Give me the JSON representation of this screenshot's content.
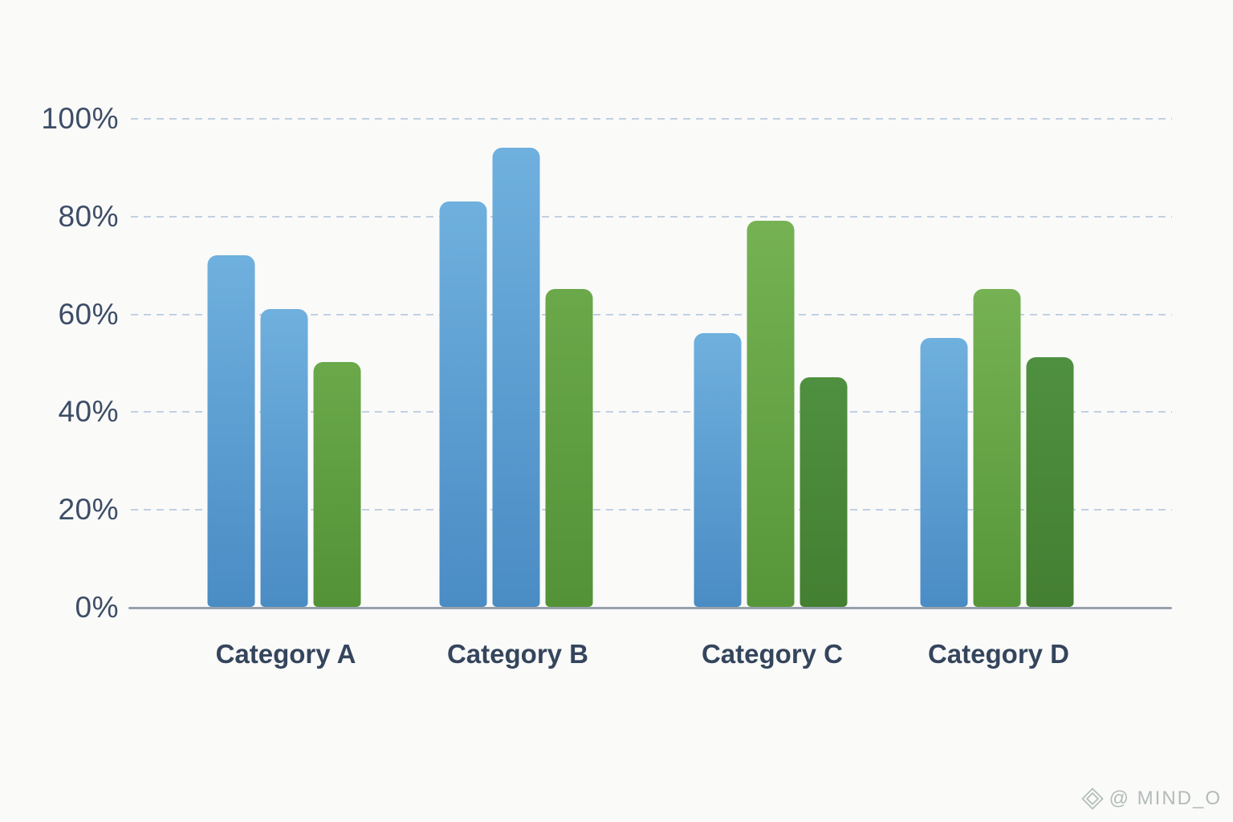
{
  "page": {
    "background_color": "#fafaf9"
  },
  "chart_data": {
    "type": "bar",
    "title": "",
    "xlabel": "",
    "ylabel": "",
    "categories": [
      "Category A",
      "Category B",
      "Category C",
      "Category D"
    ],
    "groups": [
      {
        "label": "Category A",
        "bars": [
          {
            "value": 72,
            "color": "blue"
          },
          {
            "value": 61,
            "color": "blue"
          },
          {
            "value": 50,
            "color": "green"
          }
        ]
      },
      {
        "label": "Category B",
        "bars": [
          {
            "value": 83,
            "color": "blue"
          },
          {
            "value": 94,
            "color": "blue"
          },
          {
            "value": 65,
            "color": "green"
          }
        ]
      },
      {
        "label": "Category C",
        "bars": [
          {
            "value": 56,
            "color": "blue"
          },
          {
            "value": 79,
            "color": "light-green"
          },
          {
            "value": 47,
            "color": "dark-green"
          }
        ]
      },
      {
        "label": "Category D",
        "bars": [
          {
            "value": 55,
            "color": "blue"
          },
          {
            "value": 65,
            "color": "light-green"
          },
          {
            "value": 51,
            "color": "dark-green"
          }
        ]
      }
    ],
    "y_ticks": [
      {
        "label": "100%",
        "value": 100
      },
      {
        "label": "80%",
        "value": 80
      },
      {
        "label": "60%",
        "value": 60
      },
      {
        "label": "40%",
        "value": 40
      },
      {
        "label": "20%",
        "value": 20
      },
      {
        "label": "0%",
        "value": 0
      }
    ],
    "ylim": [
      0,
      100
    ],
    "grid": "horizontal-dashed",
    "legend": "none",
    "palette": {
      "blue": {
        "top": "#6fb0de",
        "bottom": "#4a8cc4"
      },
      "green": {
        "top": "#6aa84a",
        "bottom": "#549238"
      },
      "light-green": {
        "top": "#76b254",
        "bottom": "#569639"
      },
      "dark-green": {
        "top": "#4f9040",
        "bottom": "#447f32"
      }
    },
    "colors": {
      "grid": "#b7c9dd",
      "axis": "#97a1ad",
      "tick_label": "#3d4d66",
      "category_label": "#34455c"
    }
  },
  "watermark": {
    "icon": "gem-diamond-icon",
    "text": "@ MIND_O",
    "color": "#b3bbb8"
  }
}
